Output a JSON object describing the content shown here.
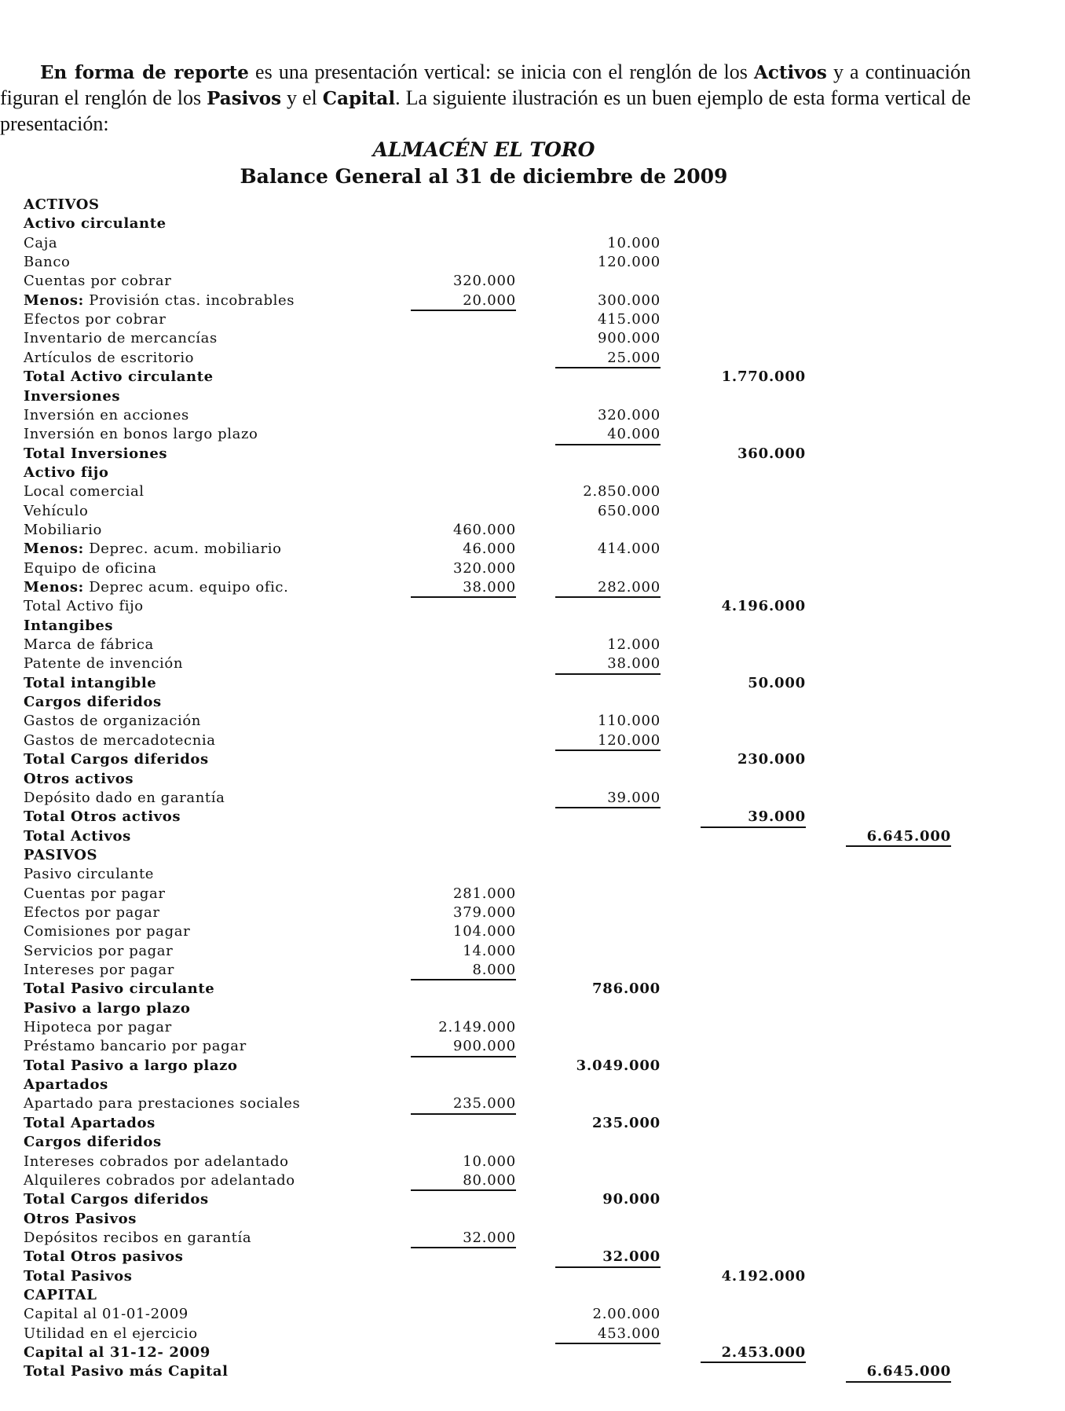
{
  "intro": [
    "En forma de reporte",
    " es una presentación vertical: se inicia con el renglón de los ",
    "Activos",
    " y a continuación figuran el renglón de los ",
    "Pasivos",
    " y el ",
    "Capital",
    ". La siguiente ilustración es un buen ejemplo de esta forma vertical de presentación:"
  ],
  "title": "ALMACÉN EL TORO",
  "subtitle": "Balance General al 31 de diciembre de 2009",
  "rows": [
    {
      "label": "ACTIVOS"
    },
    {
      "label": "Activo circulante"
    },
    {
      "label": "Caja",
      "c2": "10.000"
    },
    {
      "label": "Banco",
      "c2": "120.000"
    },
    {
      "label": "Cuentas por cobrar",
      "c1": "320.000"
    },
    {
      "prefix": "Menos:",
      "label": "Provisión ctas. incobrables",
      "c1": "20.000",
      "c2": "300.000"
    },
    {
      "label": "Efectos por cobrar",
      "c2": "415.000"
    },
    {
      "label": "Inventario de mercancías",
      "c2": "900.000"
    },
    {
      "label": "Artículos de escritorio",
      "c2": "25.000"
    },
    {
      "label": "Total Activo circulante",
      "c3": "1.770.000"
    },
    {
      "label": "Inversiones"
    },
    {
      "label": "Inversión en acciones",
      "c2": "320.000"
    },
    {
      "label": "Inversión en bonos largo plazo",
      "c2": "40.000"
    },
    {
      "label": "Total Inversiones",
      "c3": "360.000"
    },
    {
      "label": "Activo fijo"
    },
    {
      "label": "Local comercial",
      "c2": "2.850.000"
    },
    {
      "label": "Vehículo",
      "c2": "650.000"
    },
    {
      "label": "Mobiliario",
      "c1": "460.000"
    },
    {
      "prefix": "Menos:",
      "label": "Deprec. acum. mobiliario",
      "c1": "46.000",
      "c2": "414.000"
    },
    {
      "label": "Equipo de oficina",
      "c1": "320.000"
    },
    {
      "prefix": "Menos:",
      "label": "Deprec acum. equipo ofic.",
      "c1": "38.000",
      "c2": "282.000"
    },
    {
      "label": "Total Activo fijo",
      "c3": "4.196.000"
    },
    {
      "label": "Intangibes"
    },
    {
      "label": "Marca de fábrica",
      "c2": "12.000"
    },
    {
      "label": "Patente de invención",
      "c2": "38.000"
    },
    {
      "label": "Total intangible",
      "c3": "50.000"
    },
    {
      "label": "Cargos diferidos"
    },
    {
      "label": "Gastos de organización",
      "c2": "110.000"
    },
    {
      "label": "Gastos de mercadotecnia",
      "c2": "120.000"
    },
    {
      "label": "Total Cargos diferidos",
      "c3": "230.000"
    },
    {
      "label": "Otros activos"
    },
    {
      "label": "Depósito dado en garantía",
      "c2": "39.000"
    },
    {
      "label": "Total Otros activos",
      "c3": "39.000"
    },
    {
      "label": "Total Activos",
      "c4": "6.645.000"
    },
    {
      "label": "PASIVOS"
    },
    {
      "label": "Pasivo circulante"
    },
    {
      "label": "Cuentas por pagar",
      "c1": "281.000"
    },
    {
      "label": "Efectos por pagar",
      "c1": "379.000"
    },
    {
      "label": "Comisiones por pagar",
      "c1": "104.000"
    },
    {
      "label": "Servicios por pagar",
      "c1": "14.000"
    },
    {
      "label": "Intereses por pagar",
      "c1": "8.000"
    },
    {
      "label": "Total Pasivo circulante",
      "c2": "786.000"
    },
    {
      "label": "Pasivo a largo plazo"
    },
    {
      "label": "Hipoteca por pagar",
      "c1": "2.149.000"
    },
    {
      "label": "Préstamo bancario por pagar",
      "c1": "900.000"
    },
    {
      "label": "Total Pasivo a largo plazo",
      "c2": "3.049.000"
    },
    {
      "label": "Apartados"
    },
    {
      "label": "Apartado para prestaciones sociales",
      "c1": "235.000"
    },
    {
      "label": "Total Apartados",
      "c2": "235.000"
    },
    {
      "label": "Cargos diferidos"
    },
    {
      "label": "Intereses cobrados por adelantado",
      "c1": "10.000"
    },
    {
      "label": "Alquileres cobrados por adelantado",
      "c1": "80.000"
    },
    {
      "label": "Total Cargos diferidos",
      "c2": "90.000"
    },
    {
      "label": "Otros Pasivos"
    },
    {
      "label": "Depósitos recibos en garantía",
      "c1": "32.000"
    },
    {
      "label": "Total Otros pasivos",
      "c2": "32.000"
    },
    {
      "label": "Total Pasivos",
      "c3": "4.192.000"
    },
    {
      "label": "CAPITAL"
    },
    {
      "label": "Capital al 01-01-2009",
      "c2": "2.00.000"
    },
    {
      "label": "Utilidad en el ejercicio",
      "c2": "453.000"
    },
    {
      "label": "Capital al 31-12- 2009",
      "c3": "2.453.000"
    },
    {
      "label": "Total Pasivo más Capital",
      "c4": "6.645.000"
    }
  ]
}
